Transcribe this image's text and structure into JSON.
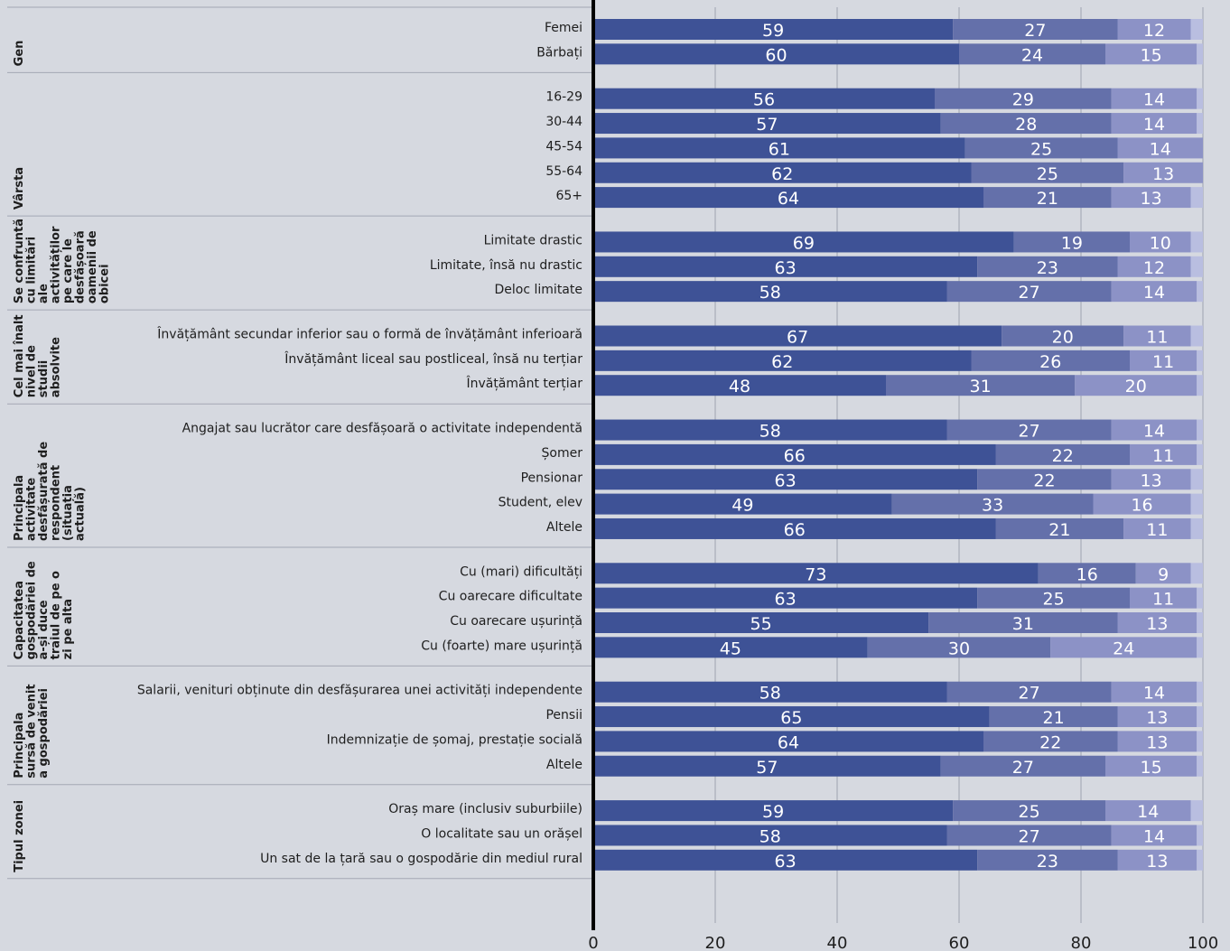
{
  "chart_data": {
    "type": "bar",
    "orientation": "horizontal",
    "stacked": true,
    "xlim": [
      0,
      100
    ],
    "x_ticks": [
      "0",
      "20",
      "40",
      "60",
      "80",
      "100"
    ],
    "grid": true,
    "colors": [
      "#3e5296",
      "#6470aa",
      "#8c92c6",
      "#b9bee0"
    ],
    "groups": [
      {
        "label": "Gen",
        "rows": [
          {
            "label": "Femei",
            "values": [
              59,
              27,
              12
            ]
          },
          {
            "label": "Bărbați",
            "values": [
              60,
              24,
              15
            ]
          }
        ]
      },
      {
        "label": "Vârsta",
        "rows": [
          {
            "label": "16-29",
            "values": [
              56,
              29,
              14
            ]
          },
          {
            "label": "30-44",
            "values": [
              57,
              28,
              14
            ]
          },
          {
            "label": "45-54",
            "values": [
              61,
              25,
              14
            ]
          },
          {
            "label": "55-64",
            "values": [
              62,
              25,
              13
            ]
          },
          {
            "label": "65+",
            "values": [
              64,
              21,
              13
            ]
          }
        ]
      },
      {
        "label": "Se confruntă cu limitări ale activităților pe care le desfășoară oamenii de obicei",
        "rows": [
          {
            "label": "Limitate drastic",
            "values": [
              69,
              19,
              10
            ]
          },
          {
            "label": "Limitate, însă nu drastic",
            "values": [
              63,
              23,
              12
            ]
          },
          {
            "label": "Deloc limitate",
            "values": [
              58,
              27,
              14
            ]
          }
        ]
      },
      {
        "label": "Cel mai înalt nivel de studii absolvite",
        "rows": [
          {
            "label": "Învățământ secundar inferior sau o formă de învățământ inferioară",
            "values": [
              67,
              20,
              11
            ]
          },
          {
            "label": "Învățământ liceal sau postliceal, însă nu terțiar",
            "values": [
              62,
              26,
              11
            ]
          },
          {
            "label": "Învățământ terțiar",
            "values": [
              48,
              31,
              20
            ]
          }
        ]
      },
      {
        "label": "Principala activitate desfășurată de respondent (situația actuală)",
        "rows": [
          {
            "label": "Angajat sau lucrător care desfășoară o activitate independentă",
            "values": [
              58,
              27,
              14
            ]
          },
          {
            "label": "Șomer",
            "values": [
              66,
              22,
              11
            ]
          },
          {
            "label": "Pensionar",
            "values": [
              63,
              22,
              13
            ]
          },
          {
            "label": "Student, elev",
            "values": [
              49,
              33,
              16
            ]
          },
          {
            "label": "Altele",
            "values": [
              66,
              21,
              11
            ]
          }
        ]
      },
      {
        "label": "Capacitatea gospodăriei de a-și duce traiul de pe o zi pe alta",
        "rows": [
          {
            "label": "Cu (mari) dificultăți",
            "values": [
              73,
              16,
              9
            ]
          },
          {
            "label": "Cu oarecare dificultate",
            "values": [
              63,
              25,
              11
            ]
          },
          {
            "label": "Cu oarecare ușurință",
            "values": [
              55,
              31,
              13
            ]
          },
          {
            "label": "Cu (foarte) mare ușurință",
            "values": [
              45,
              30,
              24
            ]
          }
        ]
      },
      {
        "label": "Principala sursă de venit a gospodăriei",
        "rows": [
          {
            "label": "Salarii, venituri obținute din desfășurarea unei activități independente",
            "values": [
              58,
              27,
              14
            ]
          },
          {
            "label": "Pensii",
            "values": [
              65,
              21,
              13
            ]
          },
          {
            "label": "Indemnizație de șomaj, prestație socială",
            "values": [
              64,
              22,
              13
            ]
          },
          {
            "label": "Altele",
            "values": [
              57,
              27,
              15
            ]
          }
        ]
      },
      {
        "label": "Tipul zonei",
        "rows": [
          {
            "label": "Oraș mare (inclusiv suburbiile)",
            "values": [
              59,
              25,
              14
            ]
          },
          {
            "label": "O localitate sau un orășel",
            "values": [
              58,
              27,
              14
            ]
          },
          {
            "label": "Un sat de la țară sau o gospodărie din mediul rural",
            "values": [
              63,
              23,
              13
            ]
          }
        ]
      }
    ]
  }
}
